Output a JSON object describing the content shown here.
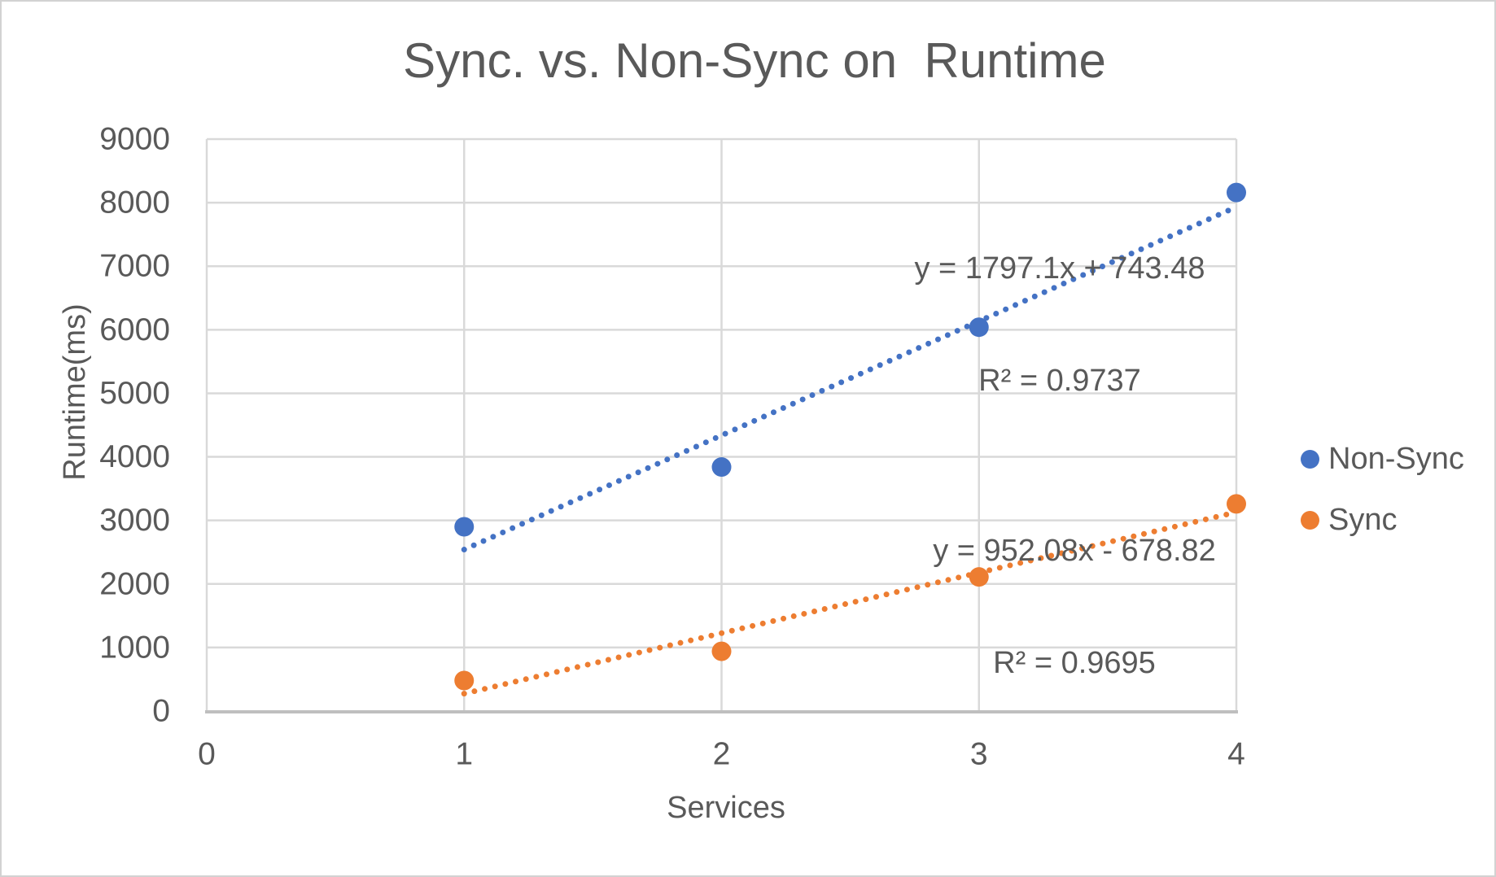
{
  "colors": {
    "non_sync_blue": "#4472C4",
    "sync_orange": "#ED7D31",
    "gridline": "#D9D9D9",
    "axis_line": "#BFBFBF",
    "text_gray": "#595959",
    "frame_border": "#D2D2D2",
    "background": "#FFFFFF"
  },
  "chart_data": {
    "type": "scatter",
    "title": "Sync. vs. Non-Sync on  Runtime",
    "xlabel": "Services",
    "ylabel": "Runtime(ms)",
    "xlim": [
      0,
      4
    ],
    "ylim": [
      0,
      9000
    ],
    "x_ticks": [
      0,
      1,
      2,
      3,
      4
    ],
    "y_ticks": [
      0,
      1000,
      2000,
      3000,
      4000,
      5000,
      6000,
      7000,
      8000,
      9000
    ],
    "grid": true,
    "legend_position": "right",
    "marker_style": "filled-circle",
    "trendline_style": "dotted",
    "series": [
      {
        "name": "Non-Sync",
        "color": "#4472C4",
        "x": [
          1,
          2,
          3,
          4
        ],
        "y": [
          2900,
          3840,
          6040,
          8160
        ],
        "trendline": {
          "slope": 1797.1,
          "intercept": 743.48,
          "x_start": 1,
          "x_end": 4,
          "equation": "y = 1797.1x + 743.48",
          "r2": "R² = 0.9737"
        }
      },
      {
        "name": "Sync",
        "color": "#ED7D31",
        "x": [
          1,
          2,
          3,
          4
        ],
        "y": [
          480,
          940,
          2110,
          3260
        ],
        "trendline": {
          "slope": 952.08,
          "intercept": -678.82,
          "x_start": 1,
          "x_end": 4,
          "equation": "y = 952.08x - 678.82",
          "r2": "R² = 0.9695"
        }
      }
    ]
  }
}
